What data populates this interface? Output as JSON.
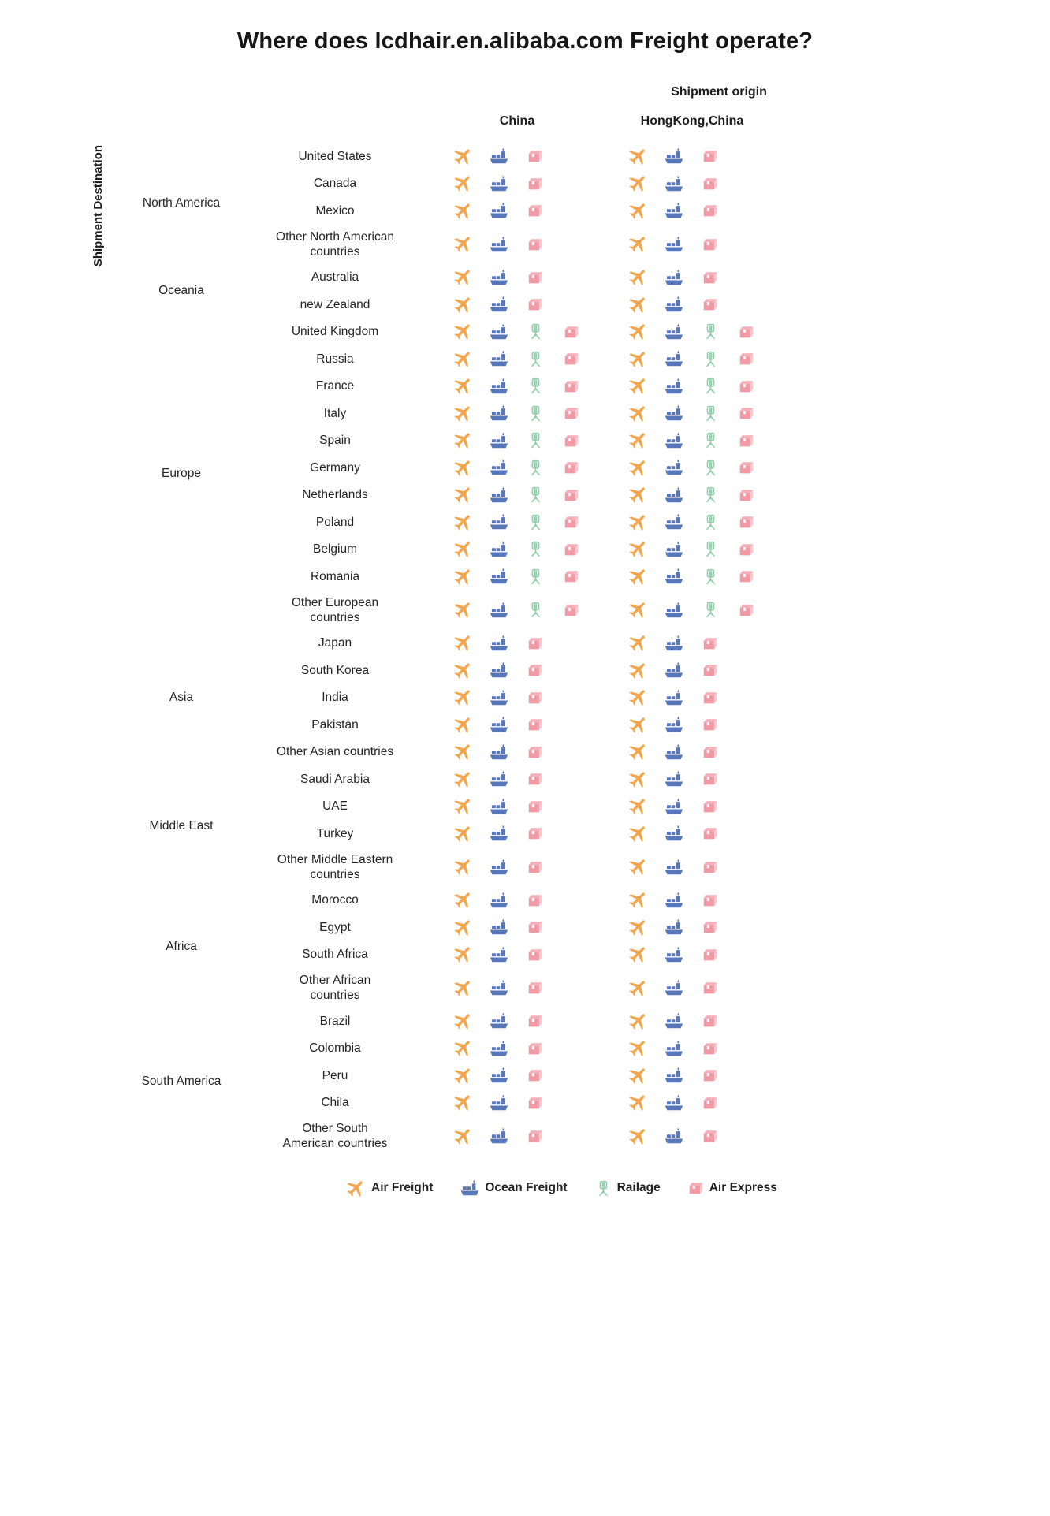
{
  "title": "Where does lcdhair.en.alibaba.com Freight operate?",
  "axis": {
    "origin": "Shipment origin",
    "destination": "Shipment Destination"
  },
  "origins": [
    "China",
    "HongKong,China"
  ],
  "legend": [
    {
      "key": "air",
      "label": "Air Freight"
    },
    {
      "key": "ocean",
      "label": "Ocean Freight"
    },
    {
      "key": "rail",
      "label": "Railage"
    },
    {
      "key": "express",
      "label": "Air Express"
    }
  ],
  "colors": {
    "air": "#F3A64E",
    "ocean": "#5877BB",
    "rail": "#8FCFA9",
    "express": "#F19AA5"
  },
  "chart_data": {
    "type": "table",
    "regions": [
      {
        "region": "North America",
        "rows": [
          {
            "country": "United States",
            "services": [
              "air",
              "ocean",
              "express"
            ]
          },
          {
            "country": "Canada",
            "services": [
              "air",
              "ocean",
              "express"
            ]
          },
          {
            "country": "Mexico",
            "services": [
              "air",
              "ocean",
              "express"
            ]
          },
          {
            "country": "Other North American countries",
            "services": [
              "air",
              "ocean",
              "express"
            ]
          }
        ]
      },
      {
        "region": "Oceania",
        "rows": [
          {
            "country": "Australia",
            "services": [
              "air",
              "ocean",
              "express"
            ]
          },
          {
            "country": "new Zealand",
            "services": [
              "air",
              "ocean",
              "express"
            ]
          }
        ]
      },
      {
        "region": "Europe",
        "rows": [
          {
            "country": "United Kingdom",
            "services": [
              "air",
              "ocean",
              "rail",
              "express"
            ]
          },
          {
            "country": "Russia",
            "services": [
              "air",
              "ocean",
              "rail",
              "express"
            ]
          },
          {
            "country": "France",
            "services": [
              "air",
              "ocean",
              "rail",
              "express"
            ]
          },
          {
            "country": "Italy",
            "services": [
              "air",
              "ocean",
              "rail",
              "express"
            ]
          },
          {
            "country": "Spain",
            "services": [
              "air",
              "ocean",
              "rail",
              "express"
            ]
          },
          {
            "country": "Germany",
            "services": [
              "air",
              "ocean",
              "rail",
              "express"
            ]
          },
          {
            "country": "Netherlands",
            "services": [
              "air",
              "ocean",
              "rail",
              "express"
            ]
          },
          {
            "country": "Poland",
            "services": [
              "air",
              "ocean",
              "rail",
              "express"
            ]
          },
          {
            "country": "Belgium",
            "services": [
              "air",
              "ocean",
              "rail",
              "express"
            ]
          },
          {
            "country": "Romania",
            "services": [
              "air",
              "ocean",
              "rail",
              "express"
            ]
          },
          {
            "country": "Other European countries",
            "services": [
              "air",
              "ocean",
              "rail",
              "express"
            ]
          }
        ]
      },
      {
        "region": "Asia",
        "rows": [
          {
            "country": "Japan",
            "services": [
              "air",
              "ocean",
              "express"
            ]
          },
          {
            "country": "South Korea",
            "services": [
              "air",
              "ocean",
              "express"
            ]
          },
          {
            "country": "India",
            "services": [
              "air",
              "ocean",
              "express"
            ]
          },
          {
            "country": "Pakistan",
            "services": [
              "air",
              "ocean",
              "express"
            ]
          },
          {
            "country": "Other Asian countries",
            "services": [
              "air",
              "ocean",
              "express"
            ]
          }
        ]
      },
      {
        "region": "Middle East",
        "rows": [
          {
            "country": "Saudi Arabia",
            "services": [
              "air",
              "ocean",
              "express"
            ]
          },
          {
            "country": "UAE",
            "services": [
              "air",
              "ocean",
              "express"
            ]
          },
          {
            "country": "Turkey",
            "services": [
              "air",
              "ocean",
              "express"
            ]
          },
          {
            "country": "Other Middle Eastern countries",
            "services": [
              "air",
              "ocean",
              "express"
            ]
          }
        ]
      },
      {
        "region": "Africa",
        "rows": [
          {
            "country": "Morocco",
            "services": [
              "air",
              "ocean",
              "express"
            ]
          },
          {
            "country": "Egypt",
            "services": [
              "air",
              "ocean",
              "express"
            ]
          },
          {
            "country": "South Africa",
            "services": [
              "air",
              "ocean",
              "express"
            ]
          },
          {
            "country": "Other African countries",
            "services": [
              "air",
              "ocean",
              "express"
            ]
          }
        ]
      },
      {
        "region": "South America",
        "rows": [
          {
            "country": "Brazil",
            "services": [
              "air",
              "ocean",
              "express"
            ]
          },
          {
            "country": "Colombia",
            "services": [
              "air",
              "ocean",
              "express"
            ]
          },
          {
            "country": "Peru",
            "services": [
              "air",
              "ocean",
              "express"
            ]
          },
          {
            "country": "Chila",
            "services": [
              "air",
              "ocean",
              "express"
            ]
          },
          {
            "country": "Other South American countries",
            "services": [
              "air",
              "ocean",
              "express"
            ]
          }
        ]
      }
    ]
  }
}
